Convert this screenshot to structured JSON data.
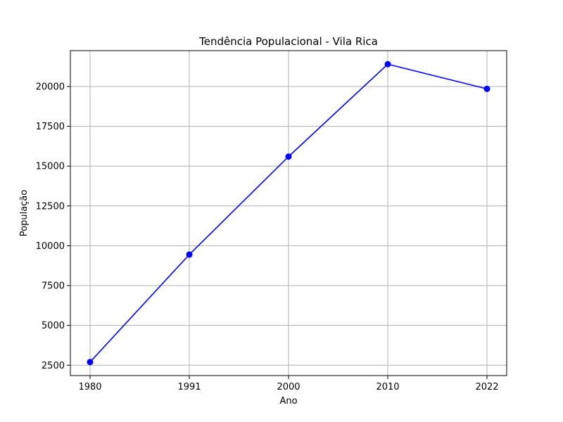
{
  "chart_data": {
    "type": "line",
    "title": "Tendência Populacional - Vila Rica",
    "xlabel": "Ano",
    "ylabel": "População",
    "categories": [
      "1980",
      "1991",
      "2000",
      "2010",
      "2022"
    ],
    "series": [
      {
        "values": [
          2700,
          9450,
          15600,
          21400,
          19850
        ],
        "color": "#0000ff",
        "marker": "circle"
      }
    ],
    "yticks": [
      2500,
      5000,
      7500,
      10000,
      12500,
      15000,
      17500,
      20000
    ],
    "ylim": [
      1850,
      22250
    ],
    "grid": true,
    "legend": "none"
  }
}
